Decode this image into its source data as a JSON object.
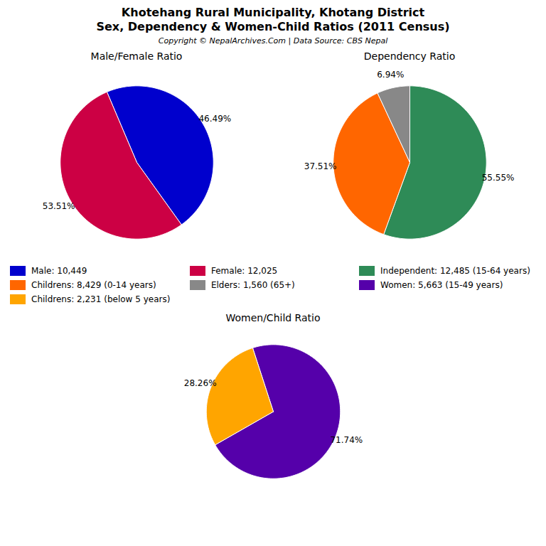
{
  "title": "Khotehang Rural Municipality, Khotang District",
  "subtitle": "Sex, Dependency & Women-Child Ratios (2011 Census)",
  "annotations": [
    "Copyright © NepalArchives.Com | Data Source: CBS Nepal"
  ],
  "chart_data": [
    {
      "type": "pie",
      "title": "Male/Female Ratio",
      "categories": [
        "Male: 10,449",
        "Female: 12,025"
      ],
      "values": [
        46.49,
        53.51
      ],
      "value_labels": [
        "46.49%",
        "53.51%"
      ],
      "colors": [
        "#0000CD",
        "#CC0044"
      ],
      "data_labels": true
    },
    {
      "type": "pie",
      "title": "Dependency Ratio",
      "categories": [
        "Independent: 12,485 (15-64 years)",
        "Childrens: 8,429 (0-14 years)",
        "Elders: 1,560 (65+)"
      ],
      "values": [
        55.55,
        37.51,
        6.94
      ],
      "value_labels": [
        "55.55%",
        "37.51%",
        "6.94%"
      ],
      "colors": [
        "#2E8B57",
        "#FF6600",
        "#888888"
      ],
      "data_labels": true
    },
    {
      "type": "pie",
      "title": "Women/Child Ratio",
      "categories": [
        "Women: 5,663 (15-49 years)",
        "Childrens: 2,231 (below 5 years)"
      ],
      "values": [
        71.74,
        28.26
      ],
      "value_labels": [
        "71.74%",
        "28.26%"
      ],
      "colors": [
        "#5500AA",
        "#FFA500"
      ],
      "data_labels": true
    }
  ]
}
